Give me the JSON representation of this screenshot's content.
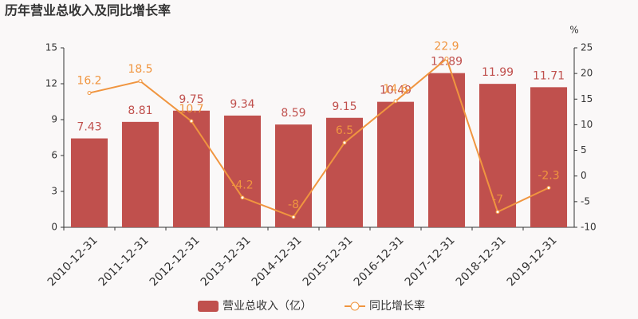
{
  "chart_data": {
    "type": "bar",
    "title": "历年营业总收入及同比增长率",
    "categories": [
      "2010-12-31",
      "2011-12-31",
      "2012-12-31",
      "2013-12-31",
      "2014-12-31",
      "2015-12-31",
      "2016-12-31",
      "2017-12-31",
      "2018-12-31",
      "2019-12-31"
    ],
    "series": [
      {
        "name": "营业总收入（亿）",
        "type": "bar",
        "color": "#c0504d",
        "values": [
          7.43,
          8.81,
          9.75,
          9.34,
          8.59,
          9.15,
          10.49,
          12.89,
          11.99,
          11.71
        ]
      },
      {
        "name": "同比增长率",
        "type": "line",
        "axis": "y2",
        "color": "#f0953f",
        "values": [
          16.2,
          18.5,
          10.7,
          -4.2,
          -8,
          6.5,
          14.6,
          22.9,
          -7,
          -2.3
        ]
      }
    ],
    "ylim": [
      0,
      15
    ],
    "yticks": [
      0,
      3,
      6,
      9,
      12,
      15
    ],
    "y2label": "%",
    "y2lim": [
      -10,
      25
    ],
    "y2ticks": [
      -10,
      -5,
      0,
      5,
      10,
      15,
      20,
      25
    ],
    "grid": false
  }
}
